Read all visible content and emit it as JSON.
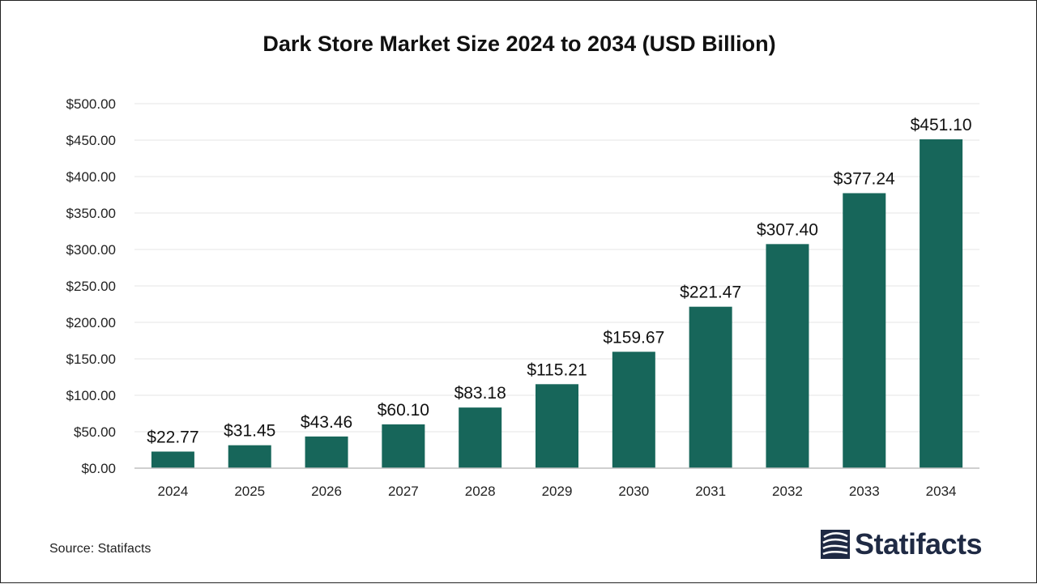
{
  "chart_data": {
    "type": "bar",
    "title": "Dark Store Market Size 2024 to 2034 (USD Billion)",
    "categories": [
      "2024",
      "2025",
      "2026",
      "2027",
      "2028",
      "2029",
      "2030",
      "2031",
      "2032",
      "2033",
      "2034"
    ],
    "values": [
      22.77,
      31.45,
      43.46,
      60.1,
      83.18,
      115.21,
      159.67,
      221.47,
      307.4,
      377.24,
      451.1
    ],
    "value_labels": [
      "$22.77",
      "$31.45",
      "$43.46",
      "$60.10",
      "$83.18",
      "$115.21",
      "$159.67",
      "$221.47",
      "$307.40",
      "$377.24",
      "$451.10"
    ],
    "ylim": [
      0,
      500
    ],
    "y_ticks": [
      0,
      50,
      100,
      150,
      200,
      250,
      300,
      350,
      400,
      450,
      500
    ],
    "y_tick_labels": [
      "$0.00",
      "$50.00",
      "$100.00",
      "$150.00",
      "$200.00",
      "$250.00",
      "$300.00",
      "$350.00",
      "$400.00",
      "$450.00",
      "$500.00"
    ],
    "xlabel": "",
    "ylabel": "",
    "grid": true,
    "bar_color": "#17665a"
  },
  "source": "Source: Statifacts",
  "brand": {
    "name": "Statifacts",
    "icon": "statifacts-logo-icon",
    "color": "#1f2a44"
  }
}
